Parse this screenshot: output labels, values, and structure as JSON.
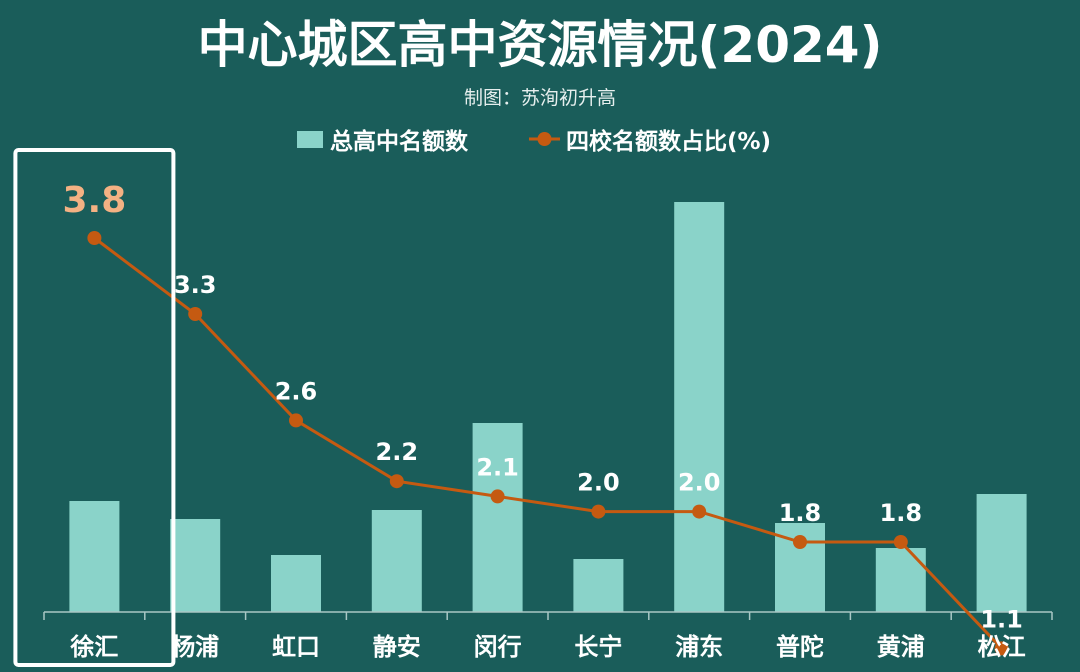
{
  "title": "中心城区高中资源情况(2024)",
  "subtitle": "制图：苏洵初升高",
  "legend": {
    "bar_label": "总高中名额数",
    "line_label": "四校名额数占比(%)"
  },
  "colors": {
    "background": "#1a5d5a",
    "bar": "#8ad3c9",
    "line": "#c55a11",
    "highlight_label": "#f4b183",
    "highlight_box": "#ffffff"
  },
  "chart_data": {
    "type": "bar",
    "categories": [
      "徐汇",
      "杨浦",
      "虹口",
      "静安",
      "闵行",
      "长宁",
      "浦东",
      "普陀",
      "黄浦",
      "松江"
    ],
    "series": [
      {
        "name": "总高中名额数",
        "type": "bar",
        "values": [
          111,
          93,
          57,
          102,
          189,
          53,
          410,
          89,
          64,
          118
        ]
      },
      {
        "name": "四校名额数占比(%)",
        "type": "line",
        "values": [
          3.8,
          3.3,
          2.6,
          2.2,
          2.1,
          2.0,
          2.0,
          1.8,
          1.8,
          1.1
        ],
        "labels": [
          "3.8",
          "3.3",
          "2.6",
          "2.2",
          "2.1",
          "2.0",
          "2.0",
          "1.8",
          "1.8",
          "1.1"
        ]
      }
    ],
    "highlight_category": "徐汇",
    "grid": false,
    "legend_position": "top"
  }
}
